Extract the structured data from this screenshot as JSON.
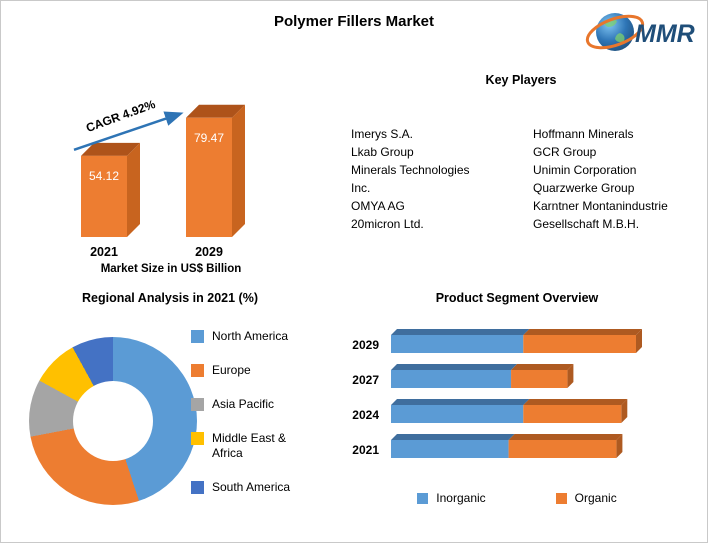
{
  "title": "Polymer Fillers Market",
  "logo": {
    "text": "MMR"
  },
  "key_players": {
    "heading": "Key Players",
    "column1": [
      "Imerys S.A.",
      "Lkab Group",
      "Minerals Technologies Inc.",
      "OMYA AG",
      "20micron Ltd."
    ],
    "column2": [
      "Hoffmann Minerals",
      "GCR Group",
      "Unimin Corporation",
      "Quarzwerke Group",
      "Karntner Montanindustrie Gesellschaft M.B.H."
    ]
  },
  "chart_data": [
    {
      "id": "market_size",
      "type": "bar",
      "categories": [
        "2021",
        "2029"
      ],
      "values": [
        54.12,
        79.47
      ],
      "annotation": "CAGR 4.92%",
      "title": "Market Size in US$ Billion",
      "ylabel": "US$ Billion",
      "colors": {
        "front": "#ED7D31",
        "top": "#AE531A",
        "side": "#C8641F",
        "arrow": "#2E74B5"
      }
    },
    {
      "id": "regional_analysis",
      "type": "pie",
      "title": "Regional Analysis in 2021 (%)",
      "labels": [
        "North America",
        "Europe",
        "Asia Pacific",
        "Middle East & Africa",
        "South America"
      ],
      "values": [
        45,
        27,
        11,
        9,
        8
      ],
      "colors": [
        "#5B9BD5",
        "#ED7D31",
        "#A5A5A5",
        "#FFC000",
        "#4472C4"
      ],
      "legend_position": "right",
      "donut": true
    },
    {
      "id": "product_segments",
      "type": "bar",
      "stacked": true,
      "orientation": "horizontal",
      "title": "Product Segment Overview",
      "categories": [
        "2029",
        "2027",
        "2024",
        "2021"
      ],
      "series": [
        {
          "name": "Inorganic",
          "color": "#5B9BD5",
          "dark": "#3F6E9E",
          "values": [
            54,
            49,
            54,
            48
          ]
        },
        {
          "name": "Organic",
          "color": "#ED7D31",
          "dark": "#AE5A21",
          "values": [
            46,
            23,
            40,
            44
          ]
        }
      ],
      "legend_position": "bottom"
    }
  ]
}
